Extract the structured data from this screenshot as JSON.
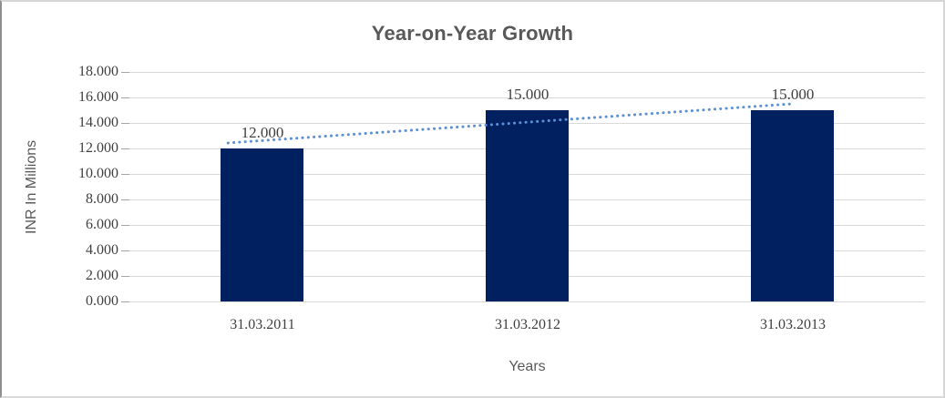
{
  "chart_data": {
    "type": "bar",
    "title": "Year-on-Year Growth",
    "xlabel": "Years",
    "ylabel": "INR In Millions",
    "categories": [
      "31.03.2011",
      "31.03.2012",
      "31.03.2013"
    ],
    "values": [
      12,
      15,
      15
    ],
    "data_labels": [
      "12.000",
      "15.000",
      "15.000"
    ],
    "ylim": [
      0,
      18
    ],
    "ytick_step": 2,
    "ytick_labels": [
      "18.000",
      "16.000",
      "14.000",
      "12.000",
      "10.000",
      "8.000",
      "6.000",
      "4.000",
      "2.000",
      "0.000"
    ],
    "grid": "horizontal-major",
    "legend": "none",
    "trendline": {
      "type": "linear",
      "style": "dotted",
      "start_value": 12.43,
      "end_value": 15.5,
      "x_start_frac": 0.124,
      "x_end_frac": 0.833
    },
    "colors": {
      "bar": "#002060",
      "trendline": "#5b8fd6",
      "gridline": "#d9d9d9",
      "tickmark": "#a6a6a6",
      "title_text": "#595959",
      "axis_text": "#404040",
      "axis_title_text": "#595959"
    }
  }
}
